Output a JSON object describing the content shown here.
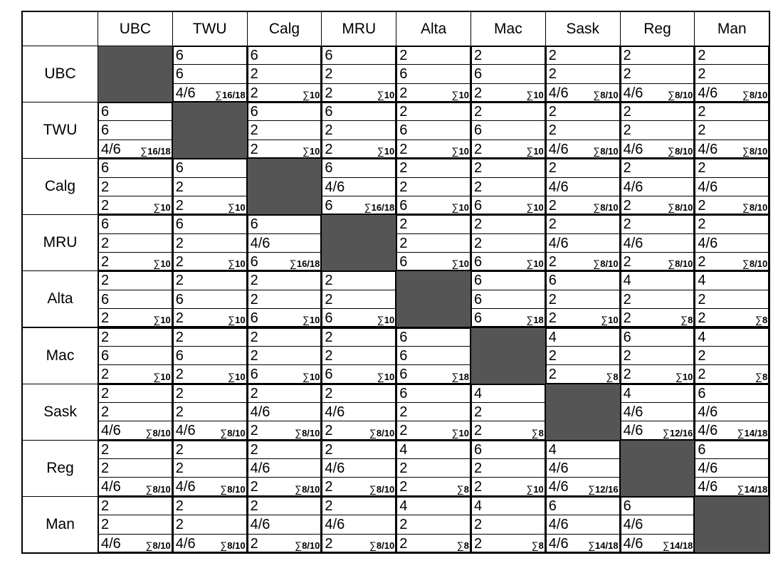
{
  "teams": [
    "UBC",
    "TWU",
    "Calg",
    "MRU",
    "Alta",
    "Mac",
    "Sask",
    "Reg",
    "Man"
  ],
  "corner_label": "",
  "colors": {
    "diagonal": "#555555",
    "border": "#000000",
    "background": "#ffffff"
  },
  "sum_symbol": "∑",
  "matrix": [
    [
      null,
      {
        "lines": [
          "6",
          "6",
          "4/6"
        ],
        "sum": "16/18"
      },
      {
        "lines": [
          "6",
          "2",
          "2"
        ],
        "sum": "10"
      },
      {
        "lines": [
          "6",
          "2",
          "2"
        ],
        "sum": "10"
      },
      {
        "lines": [
          "2",
          "6",
          "2"
        ],
        "sum": "10"
      },
      {
        "lines": [
          "2",
          "6",
          "2"
        ],
        "sum": "10"
      },
      {
        "lines": [
          "2",
          "2",
          "4/6"
        ],
        "sum": "8/10"
      },
      {
        "lines": [
          "2",
          "2",
          "4/6"
        ],
        "sum": "8/10"
      },
      {
        "lines": [
          "2",
          "2",
          "4/6"
        ],
        "sum": "8/10"
      }
    ],
    [
      {
        "lines": [
          "6",
          "6",
          "4/6"
        ],
        "sum": "16/18"
      },
      null,
      {
        "lines": [
          "6",
          "2",
          "2"
        ],
        "sum": "10"
      },
      {
        "lines": [
          "6",
          "2",
          "2"
        ],
        "sum": "10"
      },
      {
        "lines": [
          "2",
          "6",
          "2"
        ],
        "sum": "10"
      },
      {
        "lines": [
          "2",
          "6",
          "2"
        ],
        "sum": "10"
      },
      {
        "lines": [
          "2",
          "2",
          "4/6"
        ],
        "sum": "8/10"
      },
      {
        "lines": [
          "2",
          "2",
          "4/6"
        ],
        "sum": "8/10"
      },
      {
        "lines": [
          "2",
          "2",
          "4/6"
        ],
        "sum": "8/10"
      }
    ],
    [
      {
        "lines": [
          "6",
          "2",
          "2"
        ],
        "sum": "10"
      },
      {
        "lines": [
          "6",
          "2",
          "2"
        ],
        "sum": "10"
      },
      null,
      {
        "lines": [
          "6",
          "4/6",
          "6"
        ],
        "sum": "16/18"
      },
      {
        "lines": [
          "2",
          "2",
          "6"
        ],
        "sum": "10"
      },
      {
        "lines": [
          "2",
          "2",
          "6"
        ],
        "sum": "10"
      },
      {
        "lines": [
          "2",
          "4/6",
          "2"
        ],
        "sum": "8/10"
      },
      {
        "lines": [
          "2",
          "4/6",
          "2"
        ],
        "sum": "8/10"
      },
      {
        "lines": [
          "2",
          "4/6",
          "2"
        ],
        "sum": "8/10"
      }
    ],
    [
      {
        "lines": [
          "6",
          "2",
          "2"
        ],
        "sum": "10"
      },
      {
        "lines": [
          "6",
          "2",
          "2"
        ],
        "sum": "10"
      },
      {
        "lines": [
          "6",
          "4/6",
          "6"
        ],
        "sum": "16/18"
      },
      null,
      {
        "lines": [
          "2",
          "2",
          "6"
        ],
        "sum": "10"
      },
      {
        "lines": [
          "2",
          "2",
          "6"
        ],
        "sum": "10"
      },
      {
        "lines": [
          "2",
          "4/6",
          "2"
        ],
        "sum": "8/10"
      },
      {
        "lines": [
          "2",
          "4/6",
          "2"
        ],
        "sum": "8/10"
      },
      {
        "lines": [
          "2",
          "4/6",
          "2"
        ],
        "sum": "8/10"
      }
    ],
    [
      {
        "lines": [
          "2",
          "6",
          "2"
        ],
        "sum": "10"
      },
      {
        "lines": [
          "2",
          "6",
          "2"
        ],
        "sum": "10"
      },
      {
        "lines": [
          "2",
          "2",
          "6"
        ],
        "sum": "10"
      },
      {
        "lines": [
          "2",
          "2",
          "6"
        ],
        "sum": "10"
      },
      null,
      {
        "lines": [
          "6",
          "6",
          "6"
        ],
        "sum": "18"
      },
      {
        "lines": [
          "6",
          "2",
          "2"
        ],
        "sum": "10"
      },
      {
        "lines": [
          "4",
          "2",
          "2"
        ],
        "sum": "8"
      },
      {
        "lines": [
          "4",
          "2",
          "2"
        ],
        "sum": "8"
      }
    ],
    [
      {
        "lines": [
          "2",
          "6",
          "2"
        ],
        "sum": "10"
      },
      {
        "lines": [
          "2",
          "6",
          "2"
        ],
        "sum": "10"
      },
      {
        "lines": [
          "2",
          "2",
          "6"
        ],
        "sum": "10"
      },
      {
        "lines": [
          "2",
          "2",
          "6"
        ],
        "sum": "10"
      },
      {
        "lines": [
          "6",
          "6",
          "6"
        ],
        "sum": "18"
      },
      null,
      {
        "lines": [
          "4",
          "2",
          "2"
        ],
        "sum": "8"
      },
      {
        "lines": [
          "6",
          "2",
          "2"
        ],
        "sum": "10"
      },
      {
        "lines": [
          "4",
          "2",
          "2"
        ],
        "sum": "8"
      }
    ],
    [
      {
        "lines": [
          "2",
          "2",
          "4/6"
        ],
        "sum": "8/10"
      },
      {
        "lines": [
          "2",
          "2",
          "4/6"
        ],
        "sum": "8/10"
      },
      {
        "lines": [
          "2",
          "4/6",
          "2"
        ],
        "sum": "8/10"
      },
      {
        "lines": [
          "2",
          "4/6",
          "2"
        ],
        "sum": "8/10"
      },
      {
        "lines": [
          "6",
          "2",
          "2"
        ],
        "sum": "10"
      },
      {
        "lines": [
          "4",
          "2",
          "2"
        ],
        "sum": "8"
      },
      null,
      {
        "lines": [
          "4",
          "4/6",
          "4/6"
        ],
        "sum": "12/16"
      },
      {
        "lines": [
          "6",
          "4/6",
          "4/6"
        ],
        "sum": "14/18"
      }
    ],
    [
      {
        "lines": [
          "2",
          "2",
          "4/6"
        ],
        "sum": "8/10"
      },
      {
        "lines": [
          "2",
          "2",
          "4/6"
        ],
        "sum": "8/10"
      },
      {
        "lines": [
          "2",
          "4/6",
          "2"
        ],
        "sum": "8/10"
      },
      {
        "lines": [
          "2",
          "4/6",
          "2"
        ],
        "sum": "8/10"
      },
      {
        "lines": [
          "4",
          "2",
          "2"
        ],
        "sum": "8"
      },
      {
        "lines": [
          "6",
          "2",
          "2"
        ],
        "sum": "10"
      },
      {
        "lines": [
          "4",
          "4/6",
          "4/6"
        ],
        "sum": "12/16"
      },
      null,
      {
        "lines": [
          "6",
          "4/6",
          "4/6"
        ],
        "sum": "14/18"
      }
    ],
    [
      {
        "lines": [
          "2",
          "2",
          "4/6"
        ],
        "sum": "8/10"
      },
      {
        "lines": [
          "2",
          "2",
          "4/6"
        ],
        "sum": "8/10"
      },
      {
        "lines": [
          "2",
          "4/6",
          "2"
        ],
        "sum": "8/10"
      },
      {
        "lines": [
          "2",
          "4/6",
          "2"
        ],
        "sum": "8/10"
      },
      {
        "lines": [
          "4",
          "2",
          "2"
        ],
        "sum": "8"
      },
      {
        "lines": [
          "4",
          "2",
          "2"
        ],
        "sum": "8"
      },
      {
        "lines": [
          "6",
          "4/6",
          "4/6"
        ],
        "sum": "14/18"
      },
      {
        "lines": [
          "6",
          "4/6",
          "4/6"
        ],
        "sum": "14/18"
      },
      null
    ]
  ]
}
